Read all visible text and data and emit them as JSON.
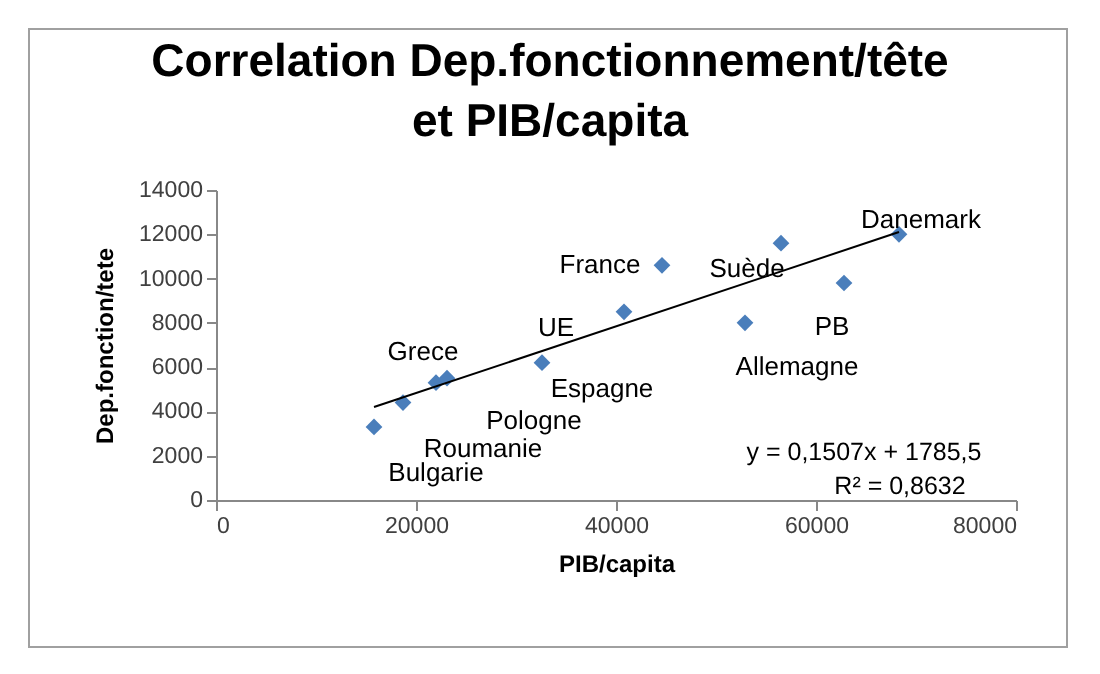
{
  "chart_data": {
    "type": "scatter",
    "title": "Correlation Dep.fonctionnement/tête et PIB/capita",
    "xlabel": "PIB/capita",
    "ylabel": "Dep.fonction/tete",
    "x": [
      15800,
      18700,
      22000,
      23100,
      32600,
      40800,
      44600,
      52900,
      56500,
      62800,
      68300
    ],
    "series": [
      {
        "color": "#4a7ebb",
        "values": [
          3300,
          4400,
          5300,
          5500,
          6200,
          8500,
          10600,
          8000,
          11600,
          9800,
          12000
        ]
      },
      {
        "type": "line",
        "marker": "none",
        "color": "#000000",
        "x": [
          15800,
          68300
        ],
        "values": [
          4200,
          12100
        ]
      }
    ],
    "annotations": [
      {
        "text": "Bulgarie",
        "x": 15800,
        "y": 3300
      },
      {
        "text": "Roumanie",
        "x": 18700,
        "y": 4400
      },
      {
        "text": "Pologne",
        "x": 22000,
        "y": 5300
      },
      {
        "text": "Grece",
        "x": 23100,
        "y": 5500
      },
      {
        "text": "Espagne",
        "x": 32600,
        "y": 6200
      },
      {
        "text": "UE",
        "x": 40800,
        "y": 8500
      },
      {
        "text": "France",
        "x": 44600,
        "y": 10600
      },
      {
        "text": "Allemagne",
        "x": 52900,
        "y": 8000
      },
      {
        "text": "Suède",
        "x": 56500,
        "y": 11600
      },
      {
        "text": "PB",
        "x": 62800,
        "y": 9800
      },
      {
        "text": "Danemark",
        "x": 68300,
        "y": 12000
      },
      "y = 0,1507x + 1785,5",
      "R² = 0,8632"
    ],
    "xlim": [
      0,
      80000
    ],
    "xticks": [
      0,
      20000,
      40000,
      60000,
      80000
    ],
    "ylim": [
      0,
      14000
    ],
    "yticks": [
      0,
      2000,
      4000,
      6000,
      8000,
      10000,
      12000,
      14000
    ],
    "grid": false,
    "marker": "diamond"
  }
}
